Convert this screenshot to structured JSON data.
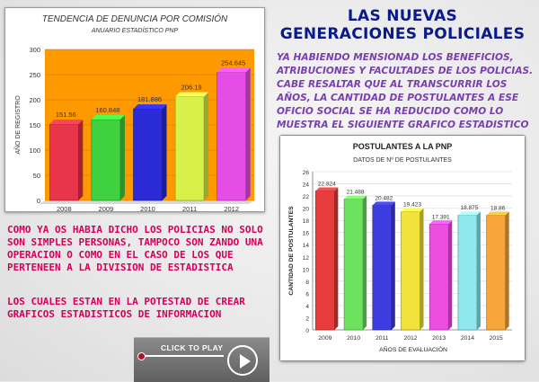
{
  "slide": {
    "title_line1": "LAS NUEVAS",
    "title_line2": "GENERACIONES POLICIALES",
    "intro_text": "YA HABIENDO MENSIONAD LOS BENEFICIOS, ATRIBUCIONES Y FACULTADES DE LOS POLICIAS. CABE RESALTAR QUE AL TRANSCURRIR LOS AÑOS, LA CANTIDAD DE POSTULANTES A ESE OFICIO SOCIAL SE HA REDUCIDO COMO LO MUESTRA EL SIGUIENTE GRAFICO ESTADISTICO",
    "paragraph1": "COMO YA OS HABIA DICHO LOS POLICIAS NO SOLO SON SIMPLES PERSONAS, TAMPOCO SON ZANDO UNA OPERACION O COMO EN EL CASO DE LOS QUE PERTENEEN A LA DIVISION DE ESTADISTICA",
    "paragraph2": "LOS CUALES ESTAN EN LA POTESTAD DE CREAR GRAFICOS ESTADISTICOS DE INFORMACION",
    "play_button_label": "CLICK TO PLAY",
    "colors": {
      "title": "#0b1a8a",
      "intro": "#7a3fae",
      "paragraphs": "#d4005a",
      "chart1_plot_bg": "#ff9900"
    }
  },
  "chart_data": [
    {
      "type": "bar",
      "title": "TENDENCIA DE DENUNCIA POR COMISIÓN",
      "subtitle": "ANUARIO ESTADÍSTICO PNP",
      "xlabel": "",
      "ylabel": "AÑO DE REGISTRO",
      "categories": [
        "2008",
        "2009",
        "2010",
        "2011",
        "2012"
      ],
      "values": [
        151.56,
        160.848,
        181.886,
        206.19,
        254.645
      ],
      "value_labels": [
        "151.56",
        "160.848",
        "181.886",
        "206.19",
        "254.645"
      ],
      "colors": [
        "#e8354a",
        "#3fd13f",
        "#2a2ad6",
        "#d8f04a",
        "#e64ce6"
      ],
      "ylim": [
        0,
        300
      ],
      "yticks": [
        "0",
        "50",
        "100",
        "150",
        "200",
        "250",
        "300"
      ],
      "grid": true
    },
    {
      "type": "bar",
      "title": "POSTULANTES A LA PNP",
      "subtitle": "DATOS DE Nº DE POSTULANTES",
      "xlabel": "AÑOS DE EVALUACIÓN",
      "ylabel": "CANTIDAD DE POSTULANTES",
      "categories": [
        "2009",
        "2010",
        "2011",
        "2012",
        "2013",
        "2014",
        "2015"
      ],
      "values": [
        22.824,
        21.488,
        20.482,
        19.423,
        17.391,
        18.875,
        18.86
      ],
      "value_labels": [
        "22.824",
        "21.488",
        "20.482",
        "19.423",
        "17.391",
        "18.875",
        "18.86"
      ],
      "colors": [
        "#e83b3b",
        "#6de25f",
        "#3c3ce0",
        "#f2e23c",
        "#ee4ee0",
        "#8fe8ee",
        "#f7a53a"
      ],
      "ylim": [
        0,
        26
      ],
      "yticks": [
        "0",
        "2",
        "4",
        "6",
        "8",
        "10",
        "12",
        "14",
        "16",
        "18",
        "20",
        "22",
        "24",
        "26"
      ],
      "grid": true
    }
  ]
}
